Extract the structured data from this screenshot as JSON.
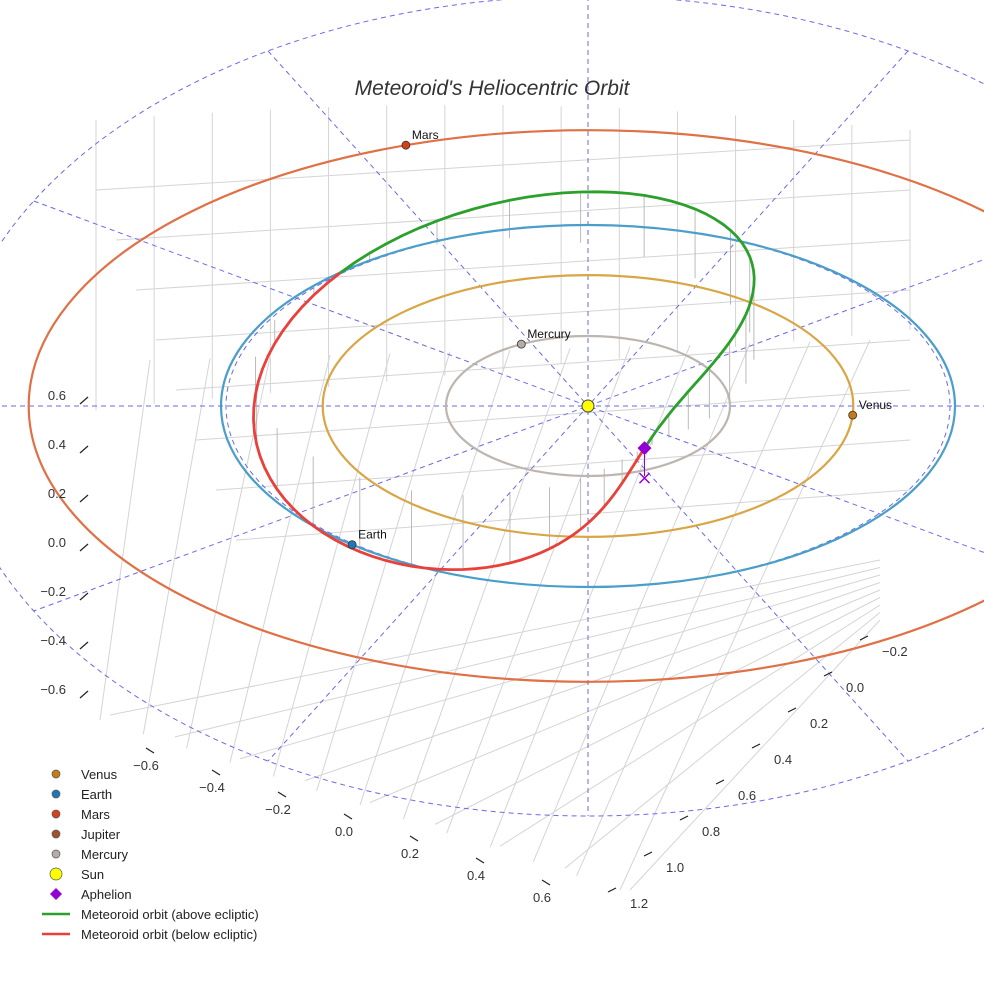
{
  "chart_data": {
    "type": "3d-line",
    "title": "Meteoroid's Heliocentric Orbit",
    "xlabel": "",
    "ylabel": "",
    "zlabel": "",
    "x_ticks": [
      "−0.6",
      "−0.4",
      "−0.2",
      "0.0",
      "0.2",
      "0.4",
      "0.6"
    ],
    "y_ticks": [
      "−0.2",
      "0.0",
      "0.2",
      "0.4",
      "0.6",
      "0.8",
      "1.0",
      "1.2"
    ],
    "z_ticks": [
      "−0.6",
      "−0.4",
      "−0.2",
      "0.0",
      "0.2",
      "0.4",
      "0.6"
    ],
    "planet_orbits": [
      {
        "name": "Mercury",
        "radius_au": 0.387,
        "color": "#bdb5b0"
      },
      {
        "name": "Venus",
        "radius_au": 0.723,
        "color": "#d9a545"
      },
      {
        "name": "Earth",
        "radius_au": 1.0,
        "color": "#4a9ec9"
      },
      {
        "name": "Mars",
        "radius_au": 1.524,
        "color": "#e07045"
      }
    ],
    "planets": [
      {
        "name": "Venus",
        "label": "Venus",
        "color": "#c77b18"
      },
      {
        "name": "Earth",
        "label": "Earth",
        "color": "#1f77b4"
      },
      {
        "name": "Mars",
        "label": "Mars",
        "color": "#d2401c"
      },
      {
        "name": "Jupiter",
        "label": "",
        "color": "#a0522d"
      },
      {
        "name": "Mercury",
        "label": "Mercury",
        "color": "#b4aca8"
      },
      {
        "name": "Sun",
        "label": "",
        "color": "#ffff00"
      }
    ],
    "meteoroid": {
      "above_color": "#2ca02c",
      "below_color": "#e8413a",
      "aphelion_color": "#9400d3",
      "perihelion_au": 0.98,
      "aphelion_au": 0.25
    },
    "legend": {
      "position": "bottom-left",
      "items": [
        {
          "label": "Venus",
          "marker": "circle",
          "color": "#c77b18"
        },
        {
          "label": "Earth",
          "marker": "circle",
          "color": "#1f77b4"
        },
        {
          "label": "Mars",
          "marker": "circle",
          "color": "#d2401c"
        },
        {
          "label": "Jupiter",
          "marker": "circle",
          "color": "#a0522d"
        },
        {
          "label": "Mercury",
          "marker": "circle",
          "color": "#b4aca8"
        },
        {
          "label": "Sun",
          "marker": "circle-large",
          "color": "#ffff00"
        },
        {
          "label": "Aphelion",
          "marker": "diamond",
          "color": "#9400d3"
        },
        {
          "label": "Meteoroid orbit (above ecliptic)",
          "marker": "line",
          "color": "#2ca02c"
        },
        {
          "label": "Meteoroid orbit (below ecliptic)",
          "marker": "line",
          "color": "#e8413a"
        }
      ]
    }
  }
}
